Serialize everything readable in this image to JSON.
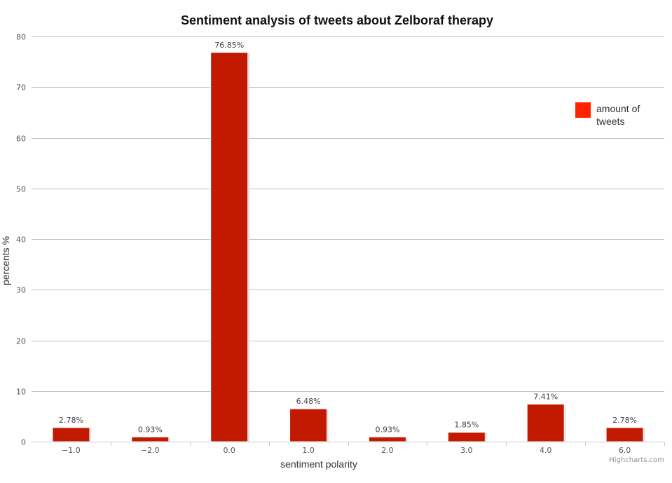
{
  "chart_data": {
    "type": "bar",
    "title": "Sentiment analysis of tweets about Zelboraf therapy",
    "xlabel": "sentiment polarity",
    "ylabel": "percents %",
    "categories": [
      "-1.0",
      "-2.0",
      "0.0",
      "1.0",
      "2.0",
      "3.0",
      "4.0",
      "6.0"
    ],
    "series": [
      {
        "name": "amount of tweets",
        "values": [
          2.78,
          0.93,
          76.85,
          6.48,
          0.93,
          1.85,
          7.41,
          2.78
        ],
        "labels": [
          "2.78%",
          "0.93%",
          "76.85%",
          "6.48%",
          "0.93%",
          "1.85%",
          "7.41%",
          "2.78%"
        ]
      }
    ],
    "ylim": [
      0,
      80
    ],
    "yticks": [
      0,
      10,
      20,
      30,
      40,
      50,
      60,
      70,
      80
    ],
    "grid": true,
    "legend_position": "top-right",
    "bar_color": "#c11a00",
    "legend_color": "#ff2200",
    "credits": "Highcharts.com"
  }
}
